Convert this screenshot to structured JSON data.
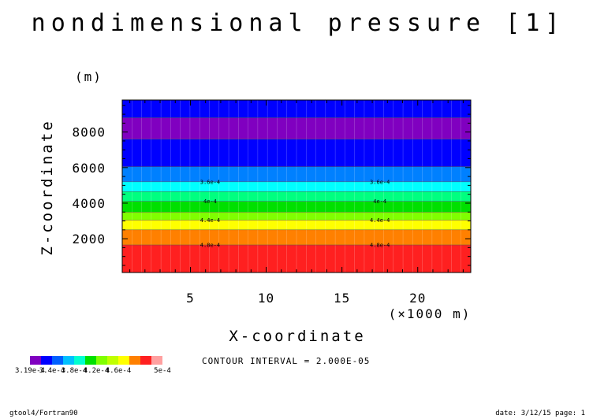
{
  "title": "nondimensional pressure [1]",
  "footer_left": "gtool4/Fortran90",
  "footer_right": "date: 3/12/15 page: 1",
  "contour_interval_text": "CONTOUR INTERVAL = 2.000E-05",
  "chart_data": {
    "type": "heatmap",
    "title": "nondimensional pressure [1]",
    "xlabel": "X-coordinate",
    "x_unit": "(×1000 m)",
    "ylabel": "Z-coordinate",
    "y_unit": "(m)",
    "xlim": [
      0.5,
      23.5
    ],
    "ylim": [
      100,
      9800
    ],
    "xticks": [
      5,
      10,
      15,
      20
    ],
    "yticks": [
      2000,
      4000,
      6000,
      8000
    ],
    "bands": [
      {
        "z_from": 100,
        "z_to": 1650,
        "color": "#ff2020"
      },
      {
        "z_from": 1650,
        "z_to": 2500,
        "color": "#ff8000"
      },
      {
        "z_from": 2500,
        "z_to": 3050,
        "color": "#ffff00"
      },
      {
        "z_from": 3050,
        "z_to": 3500,
        "color": "#80ff00"
      },
      {
        "z_from": 3500,
        "z_to": 4100,
        "color": "#00e000"
      },
      {
        "z_from": 4100,
        "z_to": 4650,
        "color": "#00ff80"
      },
      {
        "z_from": 4650,
        "z_to": 5200,
        "color": "#00ffff"
      },
      {
        "z_from": 5200,
        "z_to": 6050,
        "color": "#0080ff"
      },
      {
        "z_from": 6050,
        "z_to": 7600,
        "color": "#0000ff"
      },
      {
        "z_from": 7600,
        "z_to": 8800,
        "color": "#8000c0"
      },
      {
        "z_from": 8800,
        "z_to": 9800,
        "color": "#0000ff"
      }
    ],
    "contour_labels": [
      {
        "z": 1650,
        "text": "4.8e-4"
      },
      {
        "z": 3050,
        "text": "4.4e-4"
      },
      {
        "z": 4100,
        "text": "4e-4"
      },
      {
        "z": 5200,
        "text": "3.6e-4"
      }
    ],
    "legend": {
      "colors": [
        "#8000c0",
        "#0000ff",
        "#0060ff",
        "#00c0ff",
        "#00ffd0",
        "#00e000",
        "#80ff00",
        "#c0ff00",
        "#ffff00",
        "#ff8000",
        "#ff2020",
        "#ffa0a0"
      ],
      "tick_labels": [
        "3.19e-4",
        "3.4e-4",
        "3.8e-4",
        "4.2e-4",
        "4.6e-4",
        "5e-4"
      ]
    }
  }
}
